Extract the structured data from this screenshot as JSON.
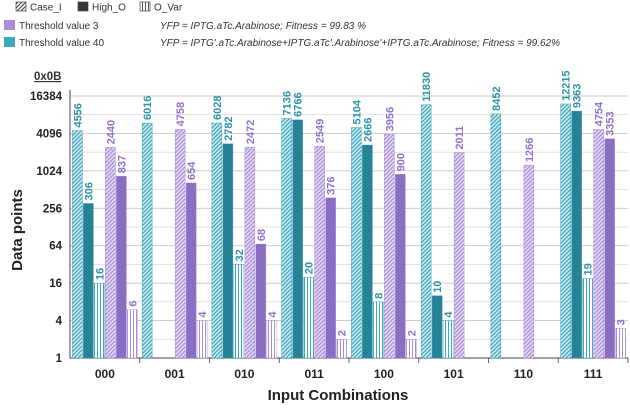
{
  "colors": {
    "teal": "#3aa8bf",
    "lavender": "#a98fd6",
    "lavender_light": "#e3d8f4",
    "teal_light": "#cfeaf1",
    "grid": "#c8c8c8",
    "bar_text_teal": "#2f93aa",
    "bar_text_purple": "#9273cc",
    "legend_dark": "#555555"
  },
  "legend": {
    "pattern_items": [
      {
        "label": "Case_I",
        "pattern": "diag"
      },
      {
        "label": "High_O",
        "pattern": "dark"
      },
      {
        "label": "O_Var",
        "pattern": "vert"
      }
    ],
    "threshold_items": [
      {
        "label": "Threshold value 3",
        "color": "lavender",
        "equation": "YFP = IPTG.aTc.Arabinose; Fitness = 99.83 %"
      },
      {
        "label": "Threshold value 40",
        "color": "teal",
        "equation": "YFP = IPTG'.aTc.Arabinose+IPTG.aTc'.Arabinose'+IPTG.aTc.Arabinose; Fitness = 99.62%"
      }
    ]
  },
  "chart_data": {
    "type": "bar",
    "scale": "log2",
    "corner_label": "0x0B",
    "ylabel": "Data points",
    "xlabel": "Input Combinations",
    "yticks": [
      1,
      4,
      16,
      64,
      256,
      1024,
      4096,
      16384
    ],
    "ylim": [
      1,
      16384
    ],
    "grid": true,
    "categories": [
      "000",
      "001",
      "010",
      "011",
      "100",
      "101",
      "110",
      "111"
    ],
    "series": [
      {
        "name": "Case_I",
        "threshold": "Threshold value 40",
        "color": "teal",
        "pattern": "diag",
        "values": [
          4556,
          6016,
          6028,
          7136,
          5104,
          11830,
          8452,
          12215
        ]
      },
      {
        "name": "High_O",
        "threshold": "Threshold value 40",
        "color": "teal",
        "pattern": "dark",
        "values": [
          306,
          null,
          2782,
          6766,
          2666,
          10,
          null,
          9363
        ]
      },
      {
        "name": "O_Var",
        "threshold": "Threshold value 40",
        "color": "teal",
        "pattern": "vert",
        "values": [
          16,
          null,
          32,
          20,
          8,
          4,
          null,
          19
        ]
      },
      {
        "name": "Case_I",
        "threshold": "Threshold value 3",
        "color": "lavender",
        "pattern": "diag",
        "values": [
          2440,
          4758,
          2472,
          2549,
          3956,
          2011,
          1266,
          4754
        ]
      },
      {
        "name": "High_O",
        "threshold": "Threshold value 3",
        "color": "lavender",
        "pattern": "dark",
        "values": [
          837,
          654,
          68,
          376,
          900,
          null,
          null,
          3353
        ]
      },
      {
        "name": "O_Var",
        "threshold": "Threshold value 3",
        "color": "lavender",
        "pattern": "vert",
        "values": [
          6,
          4,
          4,
          2,
          2,
          null,
          null,
          3
        ]
      }
    ]
  }
}
